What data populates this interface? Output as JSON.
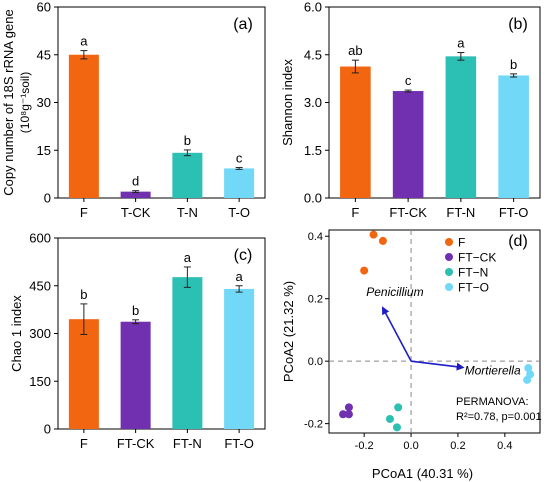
{
  "colors": {
    "F": "#F26511",
    "CK": "#7030B0",
    "N": "#2CBFB4",
    "O": "#72D8F8",
    "arrow": "#1E1EC8"
  },
  "chart_data": [
    {
      "type": "bar",
      "panel": "(a)",
      "categories": [
        "F",
        "T-CK",
        "T-N",
        "T-O"
      ],
      "values": [
        45.0,
        2.0,
        14.2,
        9.3
      ],
      "errors": [
        1.3,
        0.3,
        0.9,
        0.3
      ],
      "letters": [
        "a",
        "d",
        "b",
        "c"
      ],
      "ylabel": "Copy number of 18S rRNA gene",
      "ylabel2": "(10⁸g⁻¹soil)",
      "ylim": [
        0,
        60
      ],
      "yticks": [
        "0",
        "15",
        "30",
        "45",
        "60"
      ]
    },
    {
      "type": "bar",
      "panel": "(b)",
      "categories": [
        "F",
        "FT-CK",
        "FT-N",
        "FT-O"
      ],
      "values": [
        4.13,
        3.36,
        4.45,
        3.85
      ],
      "errors": [
        0.2,
        0.03,
        0.12,
        0.05
      ],
      "letters": [
        "ab",
        "c",
        "a",
        "b"
      ],
      "ylabel": "Shannon index",
      "ylim": [
        0,
        6.0
      ],
      "yticks": [
        "0.0",
        "1.5",
        "3.0",
        "4.5",
        "6.0"
      ]
    },
    {
      "type": "bar",
      "panel": "(c)",
      "categories": [
        "F",
        "FT-CK",
        "FT-N",
        "FT-O"
      ],
      "values": [
        345,
        337,
        477,
        440
      ],
      "errors": [
        48,
        6,
        32,
        10
      ],
      "letters": [
        "b",
        "b",
        "a",
        "a"
      ],
      "ylabel": "Chao 1 index",
      "ylim": [
        0,
        600
      ],
      "yticks": [
        "0",
        "150",
        "300",
        "450",
        "600"
      ]
    },
    {
      "type": "scatter",
      "panel": "(d)",
      "xlabel": "PCoA1  (40.31 %)",
      "ylabel": "PCoA2  (21.32 %)",
      "xlim": [
        -0.35,
        0.55
      ],
      "ylim": [
        -0.23,
        0.42
      ],
      "xticks": [
        "-0.2",
        "0.0",
        "0.2",
        "0.4"
      ],
      "yticks": [
        "-0.2",
        "0.0",
        "0.2",
        "0.4"
      ],
      "legend_position": "top-right",
      "series": [
        {
          "name": "F",
          "color_key": "F",
          "points": [
            [
              -0.16,
              0.405
            ],
            [
              -0.12,
              0.385
            ],
            [
              -0.2,
              0.29
            ]
          ]
        },
        {
          "name": "FT−CK",
          "color_key": "CK",
          "points": [
            [
              -0.265,
              -0.148
            ],
            [
              -0.29,
              -0.17
            ],
            [
              -0.265,
              -0.17
            ]
          ]
        },
        {
          "name": "FT−N",
          "color_key": "N",
          "points": [
            [
              -0.055,
              -0.148
            ],
            [
              -0.09,
              -0.185
            ],
            [
              -0.06,
              -0.212
            ]
          ]
        },
        {
          "name": "FT−O",
          "color_key": "O",
          "points": [
            [
              0.5,
              -0.022
            ],
            [
              0.508,
              -0.042
            ],
            [
              0.495,
              -0.06
            ]
          ]
        }
      ],
      "vectors": [
        {
          "name": "Penicillium",
          "x": -0.12,
          "y": 0.17
        },
        {
          "name": "Mortierella",
          "x": 0.22,
          "y": -0.02
        }
      ],
      "annotation_line1": "PERMANOVA:",
      "annotation_line2": "R²=0.78, p=0.001"
    }
  ]
}
